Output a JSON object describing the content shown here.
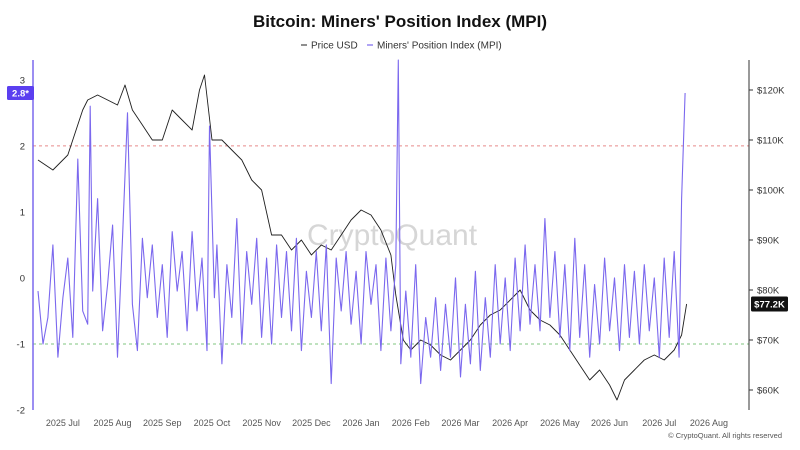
{
  "chart_data": {
    "type": "line",
    "title": "Bitcoin: Miners' Position Index (MPI)",
    "x_labels": [
      "2025 Jul",
      "2025 Aug",
      "2025 Sep",
      "2025 Oct",
      "2025 Nov",
      "2025 Dec",
      "2026 Jan",
      "2026 Feb",
      "2026 Mar",
      "2026 Apr",
      "2026 May",
      "2026 Jun",
      "2026 Jul",
      "2026 Aug"
    ],
    "y_left": {
      "ticks": [
        "3",
        "2",
        "1",
        "0",
        "-1",
        "-2"
      ],
      "range": [
        -2.0,
        3.3
      ]
    },
    "y_right": {
      "ticks": [
        "$120K",
        "$110K",
        "$100K",
        "$90K",
        "$80K",
        "$70K",
        "$60K"
      ],
      "range": [
        56000,
        126000
      ]
    },
    "reference_lines": [
      {
        "value": 2,
        "axis": "left",
        "color": "#e88a8a"
      },
      {
        "value": -1,
        "axis": "left",
        "color": "#7fc47f"
      }
    ],
    "series": [
      {
        "name": "Price USD",
        "color": "#1f1f1f",
        "axis": "right",
        "points": [
          [
            0,
            106000
          ],
          [
            0.3,
            104000
          ],
          [
            0.6,
            107000
          ],
          [
            0.9,
            116000
          ],
          [
            1.0,
            118000
          ],
          [
            1.2,
            119000
          ],
          [
            1.4,
            118000
          ],
          [
            1.6,
            117000
          ],
          [
            1.75,
            121000
          ],
          [
            1.9,
            116000
          ],
          [
            2.1,
            113000
          ],
          [
            2.3,
            110000
          ],
          [
            2.5,
            110000
          ],
          [
            2.7,
            116000
          ],
          [
            2.9,
            114000
          ],
          [
            3.1,
            112000
          ],
          [
            3.25,
            120000
          ],
          [
            3.35,
            123000
          ],
          [
            3.5,
            110000
          ],
          [
            3.7,
            110000
          ],
          [
            3.9,
            108000
          ],
          [
            4.1,
            106000
          ],
          [
            4.3,
            102000
          ],
          [
            4.5,
            100000
          ],
          [
            4.7,
            91000
          ],
          [
            4.9,
            91000
          ],
          [
            5.1,
            88000
          ],
          [
            5.3,
            90000
          ],
          [
            5.5,
            87000
          ],
          [
            5.7,
            89000
          ],
          [
            5.9,
            88000
          ],
          [
            6.1,
            91000
          ],
          [
            6.3,
            94000
          ],
          [
            6.5,
            96000
          ],
          [
            6.7,
            95000
          ],
          [
            6.9,
            92000
          ],
          [
            7.1,
            87000
          ],
          [
            7.2,
            79000
          ],
          [
            7.35,
            70000
          ],
          [
            7.5,
            68000
          ],
          [
            7.7,
            70000
          ],
          [
            7.9,
            69000
          ],
          [
            8.1,
            67000
          ],
          [
            8.3,
            66000
          ],
          [
            8.5,
            68000
          ],
          [
            8.7,
            70000
          ],
          [
            8.9,
            73000
          ],
          [
            9.1,
            75000
          ],
          [
            9.3,
            76000
          ],
          [
            9.5,
            78000
          ],
          [
            9.7,
            80000
          ],
          [
            9.9,
            76000
          ],
          [
            10.1,
            74000
          ],
          [
            10.3,
            73000
          ],
          [
            10.5,
            71000
          ],
          [
            10.7,
            68000
          ],
          [
            10.9,
            65000
          ],
          [
            11.1,
            62000
          ],
          [
            11.3,
            64000
          ],
          [
            11.5,
            61000
          ],
          [
            11.65,
            58000
          ],
          [
            11.8,
            62000
          ],
          [
            12.0,
            64000
          ],
          [
            12.2,
            66000
          ],
          [
            12.4,
            67000
          ],
          [
            12.6,
            66000
          ],
          [
            12.8,
            68000
          ],
          [
            12.95,
            71000
          ],
          [
            13.05,
            77200
          ]
        ]
      },
      {
        "name": "Miners' Position Index (MPI)",
        "color": "#7b68ee",
        "axis": "left",
        "points": [
          [
            0,
            -0.2
          ],
          [
            0.1,
            -1.0
          ],
          [
            0.2,
            -0.6
          ],
          [
            0.3,
            0.5
          ],
          [
            0.4,
            -1.2
          ],
          [
            0.5,
            -0.3
          ],
          [
            0.6,
            0.3
          ],
          [
            0.7,
            -0.9
          ],
          [
            0.8,
            1.8
          ],
          [
            0.9,
            -0.5
          ],
          [
            1.0,
            -0.7
          ],
          [
            1.05,
            2.6
          ],
          [
            1.1,
            -0.2
          ],
          [
            1.2,
            1.2
          ],
          [
            1.3,
            -0.8
          ],
          [
            1.4,
            -0.1
          ],
          [
            1.5,
            0.8
          ],
          [
            1.6,
            -1.2
          ],
          [
            1.7,
            0.6
          ],
          [
            1.8,
            2.5
          ],
          [
            1.9,
            -0.4
          ],
          [
            2.0,
            -1.1
          ],
          [
            2.1,
            0.6
          ],
          [
            2.2,
            -0.3
          ],
          [
            2.3,
            0.5
          ],
          [
            2.4,
            -0.6
          ],
          [
            2.5,
            0.2
          ],
          [
            2.6,
            -0.9
          ],
          [
            2.7,
            0.7
          ],
          [
            2.8,
            -0.2
          ],
          [
            2.9,
            0.4
          ],
          [
            3.0,
            -0.8
          ],
          [
            3.1,
            0.7
          ],
          [
            3.2,
            -0.5
          ],
          [
            3.3,
            0.3
          ],
          [
            3.4,
            -1.1
          ],
          [
            3.45,
            2.3
          ],
          [
            3.55,
            -0.3
          ],
          [
            3.6,
            0.5
          ],
          [
            3.7,
            -1.3
          ],
          [
            3.8,
            0.2
          ],
          [
            3.9,
            -0.6
          ],
          [
            4.0,
            0.9
          ],
          [
            4.1,
            -1.0
          ],
          [
            4.2,
            0.4
          ],
          [
            4.3,
            -0.4
          ],
          [
            4.4,
            0.6
          ],
          [
            4.5,
            -0.9
          ],
          [
            4.6,
            0.3
          ],
          [
            4.7,
            -1.0
          ],
          [
            4.8,
            0.5
          ],
          [
            4.9,
            -0.6
          ],
          [
            5.0,
            0.4
          ],
          [
            5.1,
            -0.8
          ],
          [
            5.2,
            0.6
          ],
          [
            5.3,
            -1.1
          ],
          [
            5.4,
            0.1
          ],
          [
            5.5,
            -0.6
          ],
          [
            5.6,
            0.4
          ],
          [
            5.7,
            -0.8
          ],
          [
            5.8,
            0.5
          ],
          [
            5.9,
            -1.6
          ],
          [
            6.0,
            0.3
          ],
          [
            6.1,
            -0.5
          ],
          [
            6.2,
            0.4
          ],
          [
            6.3,
            -0.7
          ],
          [
            6.4,
            0.1
          ],
          [
            6.5,
            -1.0
          ],
          [
            6.6,
            0.4
          ],
          [
            6.7,
            -0.4
          ],
          [
            6.8,
            0.2
          ],
          [
            6.9,
            -1.1
          ],
          [
            7.0,
            0.3
          ],
          [
            7.1,
            -0.8
          ],
          [
            7.2,
            0.2
          ],
          [
            7.25,
            3.3
          ],
          [
            7.3,
            -1.3
          ],
          [
            7.4,
            -0.2
          ],
          [
            7.5,
            -1.2
          ],
          [
            7.6,
            0.2
          ],
          [
            7.7,
            -1.6
          ],
          [
            7.8,
            -0.6
          ],
          [
            7.9,
            -1.2
          ],
          [
            8.0,
            -0.3
          ],
          [
            8.1,
            -1.4
          ],
          [
            8.2,
            -0.4
          ],
          [
            8.3,
            -1.2
          ],
          [
            8.4,
            0.0
          ],
          [
            8.5,
            -1.5
          ],
          [
            8.6,
            -0.4
          ],
          [
            8.7,
            -1.3
          ],
          [
            8.8,
            0.1
          ],
          [
            8.9,
            -1.4
          ],
          [
            9.0,
            -0.3
          ],
          [
            9.1,
            -1.2
          ],
          [
            9.2,
            0.2
          ],
          [
            9.3,
            -1.0
          ],
          [
            9.4,
            0.0
          ],
          [
            9.5,
            -1.1
          ],
          [
            9.6,
            0.3
          ],
          [
            9.7,
            -0.8
          ],
          [
            9.8,
            0.5
          ],
          [
            9.9,
            -0.7
          ],
          [
            10.0,
            0.2
          ],
          [
            10.1,
            -0.8
          ],
          [
            10.2,
            0.9
          ],
          [
            10.3,
            -0.6
          ],
          [
            10.4,
            0.4
          ],
          [
            10.5,
            -0.9
          ],
          [
            10.6,
            0.2
          ],
          [
            10.7,
            -1.1
          ],
          [
            10.8,
            0.6
          ],
          [
            10.9,
            -0.9
          ],
          [
            11.0,
            0.2
          ],
          [
            11.1,
            -1.2
          ],
          [
            11.2,
            -0.1
          ],
          [
            11.3,
            -1.0
          ],
          [
            11.4,
            0.3
          ],
          [
            11.5,
            -0.8
          ],
          [
            11.6,
            0.0
          ],
          [
            11.7,
            -1.1
          ],
          [
            11.8,
            0.2
          ],
          [
            11.9,
            -0.9
          ],
          [
            12.0,
            0.1
          ],
          [
            12.1,
            -1.0
          ],
          [
            12.2,
            0.2
          ],
          [
            12.3,
            -0.8
          ],
          [
            12.4,
            0.0
          ],
          [
            12.5,
            -1.2
          ],
          [
            12.6,
            0.3
          ],
          [
            12.7,
            -0.9
          ],
          [
            12.8,
            0.4
          ],
          [
            12.9,
            -1.2
          ],
          [
            12.95,
            1.2
          ],
          [
            13.02,
            2.8
          ]
        ]
      }
    ],
    "current_labels": {
      "left": "2.8*",
      "right": "$77.2K"
    },
    "legend": {
      "placement": "top-center"
    },
    "watermark": "CryptoQuant",
    "copyright": "© CryptoQuant. All rights reserved"
  }
}
